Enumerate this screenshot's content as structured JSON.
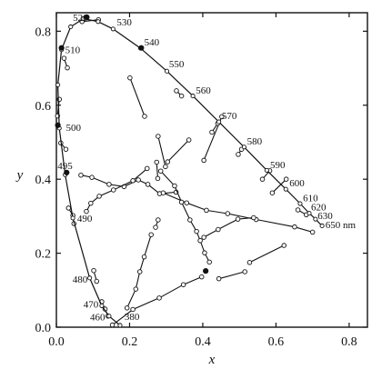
{
  "chart_data": {
    "type": "scatter",
    "title": "",
    "xlabel": "x",
    "ylabel": "y",
    "xlim": [
      0.0,
      0.85
    ],
    "ylim": [
      0.0,
      0.85
    ],
    "grid": false,
    "xticks": [
      "0.0",
      "0.2",
      "0.4",
      "0.6",
      "0.8"
    ],
    "yticks": [
      "0.0",
      "0.2",
      "0.4",
      "0.6",
      "0.8"
    ],
    "xtick_values": [
      0.0,
      0.2,
      0.4,
      0.6,
      0.8
    ],
    "ytick_values": [
      0.0,
      0.2,
      0.4,
      0.6,
      0.8
    ],
    "spectral_locus": {
      "name": "spectral locus",
      "points": [
        {
          "wl": "380",
          "x": 0.174,
          "y": 0.005
        },
        {
          "wl": "460",
          "x": 0.144,
          "y": 0.03
        },
        {
          "wl": "470",
          "x": 0.124,
          "y": 0.058
        },
        {
          "wl": "480",
          "x": 0.091,
          "y": 0.133
        },
        {
          "wl": "490",
          "x": 0.045,
          "y": 0.295
        },
        {
          "wl": "495",
          "x": 0.024,
          "y": 0.412
        },
        {
          "wl": "500",
          "x": 0.008,
          "y": 0.538
        },
        {
          "wl": "505",
          "x": 0.004,
          "y": 0.655
        },
        {
          "wl": "510",
          "x": 0.014,
          "y": 0.75
        },
        {
          "wl": "515",
          "x": 0.039,
          "y": 0.812
        },
        {
          "wl": "520",
          "x": 0.074,
          "y": 0.834
        },
        {
          "wl": "525",
          "x": 0.114,
          "y": 0.826
        },
        {
          "wl": "530",
          "x": 0.155,
          "y": 0.806
        },
        {
          "wl": "540",
          "x": 0.23,
          "y": 0.754
        },
        {
          "wl": "550",
          "x": 0.302,
          "y": 0.692
        },
        {
          "wl": "560",
          "x": 0.373,
          "y": 0.625
        },
        {
          "wl": "570",
          "x": 0.444,
          "y": 0.555
        },
        {
          "wl": "580",
          "x": 0.513,
          "y": 0.487
        },
        {
          "wl": "590",
          "x": 0.575,
          "y": 0.424
        },
        {
          "wl": "600",
          "x": 0.627,
          "y": 0.373
        },
        {
          "wl": "610",
          "x": 0.666,
          "y": 0.334
        },
        {
          "wl": "620",
          "x": 0.691,
          "y": 0.308
        },
        {
          "wl": "630",
          "x": 0.708,
          "y": 0.292
        },
        {
          "wl": "650",
          "x": 0.726,
          "y": 0.274
        }
      ]
    },
    "wavelength_labels": [
      {
        "text": "520",
        "x": 0.045,
        "y": 0.838
      },
      {
        "text": "530",
        "x": 0.165,
        "y": 0.825
      },
      {
        "text": "540",
        "x": 0.24,
        "y": 0.771
      },
      {
        "text": "550",
        "x": 0.308,
        "y": 0.712
      },
      {
        "text": "560",
        "x": 0.381,
        "y": 0.641
      },
      {
        "text": "570",
        "x": 0.452,
        "y": 0.572
      },
      {
        "text": "580",
        "x": 0.521,
        "y": 0.503
      },
      {
        "text": "590",
        "x": 0.584,
        "y": 0.44
      },
      {
        "text": "600",
        "x": 0.637,
        "y": 0.391
      },
      {
        "text": "610",
        "x": 0.674,
        "y": 0.35
      },
      {
        "text": "620",
        "x": 0.696,
        "y": 0.325
      },
      {
        "text": "630",
        "x": 0.714,
        "y": 0.302
      },
      {
        "text": "650 nm",
        "x": 0.735,
        "y": 0.278
      },
      {
        "text": "510",
        "x": 0.024,
        "y": 0.751
      },
      {
        "text": "500",
        "x": 0.026,
        "y": 0.54
      },
      {
        "text": "495",
        "x": 0.003,
        "y": 0.437
      },
      {
        "text": "490",
        "x": 0.057,
        "y": 0.295
      },
      {
        "text": "480",
        "x": 0.044,
        "y": 0.13
      },
      {
        "text": "470",
        "x": 0.074,
        "y": 0.063
      },
      {
        "text": "460",
        "x": 0.092,
        "y": 0.028
      },
      {
        "text": "380",
        "x": 0.186,
        "y": 0.03
      }
    ],
    "solid_points": [
      {
        "x": 0.083,
        "y": 0.838
      },
      {
        "x": 0.014,
        "y": 0.755
      },
      {
        "x": 0.232,
        "y": 0.755
      },
      {
        "x": 0.004,
        "y": 0.546
      },
      {
        "x": 0.028,
        "y": 0.418
      },
      {
        "x": 0.408,
        "y": 0.152
      }
    ],
    "discrimination_ellipses": [
      {
        "points": [
          [
            0.153,
            0.006
          ],
          [
            0.209,
            0.048
          ],
          [
            0.281,
            0.079
          ],
          [
            0.347,
            0.115
          ],
          [
            0.397,
            0.136
          ]
        ],
        "open": true
      },
      {
        "points": [
          [
            0.193,
            0.052
          ],
          [
            0.217,
            0.103
          ],
          [
            0.228,
            0.15
          ],
          [
            0.24,
            0.19
          ],
          [
            0.259,
            0.25
          ]
        ],
        "open": true
      },
      {
        "points": [
          [
            0.271,
            0.27
          ],
          [
            0.278,
            0.29
          ]
        ],
        "open": true
      },
      {
        "points": [
          [
            0.124,
            0.069
          ],
          [
            0.133,
            0.049
          ],
          [
            0.141,
            0.03
          ]
        ],
        "open": true
      },
      {
        "points": [
          [
            0.102,
            0.153
          ],
          [
            0.11,
            0.124
          ]
        ],
        "open": true
      },
      {
        "points": [
          [
            0.067,
            0.411
          ],
          [
            0.097,
            0.405
          ],
          [
            0.144,
            0.386
          ],
          [
            0.185,
            0.38
          ],
          [
            0.224,
            0.398
          ],
          [
            0.25,
            0.386
          ],
          [
            0.282,
            0.361
          ],
          [
            0.327,
            0.365
          ]
        ],
        "open": true
      },
      {
        "points": [
          [
            0.082,
            0.313
          ],
          [
            0.094,
            0.335
          ],
          [
            0.117,
            0.354
          ],
          [
            0.156,
            0.371
          ],
          [
            0.209,
            0.396
          ],
          [
            0.248,
            0.429
          ]
        ],
        "open": true
      },
      {
        "points": [
          [
            0.292,
            0.363
          ],
          [
            0.356,
            0.336
          ],
          [
            0.41,
            0.316
          ],
          [
            0.468,
            0.307
          ],
          [
            0.546,
            0.291
          ],
          [
            0.651,
            0.271
          ],
          [
            0.7,
            0.257
          ]
        ],
        "open": true
      },
      {
        "points": [
          [
            0.201,
            0.674
          ],
          [
            0.241,
            0.57
          ]
        ],
        "open": true
      },
      {
        "points": [
          [
            0.278,
            0.516
          ],
          [
            0.298,
            0.434
          ]
        ],
        "open": true
      },
      {
        "points": [
          [
            0.304,
            0.447
          ],
          [
            0.362,
            0.506
          ]
        ],
        "open": true
      },
      {
        "points": [
          [
            0.403,
            0.451
          ],
          [
            0.452,
            0.569
          ]
        ],
        "open": true
      },
      {
        "points": [
          [
            0.274,
            0.446
          ],
          [
            0.277,
            0.402
          ]
        ],
        "open": true
      },
      {
        "points": [
          [
            0.285,
            0.422
          ],
          [
            0.323,
            0.382
          ],
          [
            0.342,
            0.338
          ],
          [
            0.365,
            0.29
          ],
          [
            0.383,
            0.259
          ],
          [
            0.393,
            0.234
          ],
          [
            0.405,
            0.201
          ],
          [
            0.418,
            0.176
          ]
        ],
        "open": true
      },
      {
        "points": [
          [
            0.444,
            0.131
          ],
          [
            0.515,
            0.15
          ]
        ],
        "open": true
      },
      {
        "points": [
          [
            0.528,
            0.175
          ],
          [
            0.622,
            0.221
          ]
        ],
        "open": true
      },
      {
        "points": [
          [
            0.403,
            0.243
          ],
          [
            0.442,
            0.264
          ],
          [
            0.496,
            0.292
          ],
          [
            0.539,
            0.296
          ]
        ],
        "open": true
      },
      {
        "points": [
          [
            0.59,
            0.363
          ],
          [
            0.628,
            0.4
          ]
        ],
        "open": true
      },
      {
        "points": [
          [
            0.66,
            0.317
          ],
          [
            0.683,
            0.304
          ]
        ],
        "open": true
      },
      {
        "points": [
          [
            0.033,
            0.322
          ],
          [
            0.045,
            0.302
          ],
          [
            0.048,
            0.28
          ]
        ],
        "open": true
      },
      {
        "points": [
          [
            0.026,
            0.481
          ],
          [
            0.012,
            0.498
          ]
        ],
        "open": true
      },
      {
        "points": [
          [
            0.008,
            0.616
          ],
          [
            0.003,
            0.571
          ]
        ],
        "open": true
      },
      {
        "points": [
          [
            0.03,
            0.701
          ],
          [
            0.021,
            0.727
          ]
        ],
        "open": true
      },
      {
        "points": [
          [
            0.115,
            0.831
          ],
          [
            0.07,
            0.826
          ]
        ],
        "open": true
      },
      {
        "points": [
          [
            0.328,
            0.639
          ],
          [
            0.342,
            0.625
          ]
        ],
        "open": true
      },
      {
        "points": [
          [
            0.425,
            0.527
          ],
          [
            0.441,
            0.551
          ]
        ],
        "open": true
      },
      {
        "points": [
          [
            0.497,
            0.467
          ],
          [
            0.506,
            0.481
          ]
        ],
        "open": true
      },
      {
        "points": [
          [
            0.563,
            0.4
          ],
          [
            0.583,
            0.423
          ]
        ],
        "open": true
      }
    ]
  }
}
